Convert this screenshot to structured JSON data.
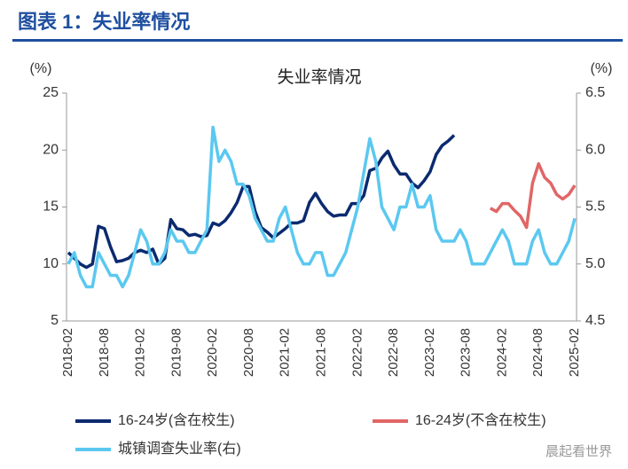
{
  "header": {
    "title": "图表 1：失业率情况"
  },
  "watermark": "晨起看世界",
  "chart_data": {
    "type": "line",
    "title": "失业率情况",
    "ylabel": "(%)",
    "y2label": "(%)",
    "categories": [
      "2018-02",
      null,
      null,
      null,
      null,
      null,
      "2018-08",
      null,
      null,
      null,
      null,
      null,
      "2019-02",
      null,
      null,
      null,
      null,
      null,
      "2019-08",
      null,
      null,
      null,
      null,
      null,
      "2020-02",
      null,
      null,
      null,
      null,
      null,
      "2020-08",
      null,
      null,
      null,
      null,
      null,
      "2021-02",
      null,
      null,
      null,
      null,
      null,
      "2021-08",
      null,
      null,
      null,
      null,
      null,
      "2022-02",
      null,
      null,
      null,
      null,
      null,
      "2022-08",
      null,
      null,
      null,
      null,
      null,
      "2023-02",
      null,
      null,
      null,
      null,
      null,
      "2023-08",
      null,
      null,
      null,
      null,
      null,
      "2024-02",
      null,
      null,
      null,
      null,
      null,
      "2024-08",
      null,
      null,
      null,
      null,
      null,
      "2025-02"
    ],
    "series": [
      {
        "name": "16-24岁(含在校生)",
        "color": "#0b2a6f",
        "values": [
          11.0,
          10.5,
          10.0,
          9.7,
          10.0,
          13.3,
          13.1,
          11.5,
          10.2,
          10.3,
          10.5,
          11.0,
          11.2,
          11.0,
          11.3,
          10.0,
          10.5,
          13.9,
          13.1,
          13.0,
          12.5,
          12.6,
          12.4,
          12.5,
          13.6,
          13.4,
          13.8,
          14.5,
          15.4,
          16.8,
          16.8,
          14.6,
          13.2,
          12.8,
          12.3,
          12.7,
          13.1,
          13.6,
          13.6,
          13.8,
          15.4,
          16.2,
          15.3,
          14.6,
          14.2,
          14.3,
          14.3,
          15.3,
          15.3,
          16.0,
          18.2,
          18.4,
          19.3,
          19.9,
          18.7,
          17.9,
          17.9,
          17.1,
          16.7,
          17.3,
          18.1,
          19.6,
          20.4,
          20.8,
          21.3,
          null,
          null,
          null,
          null,
          null,
          null,
          null,
          null,
          null,
          null,
          null,
          null,
          null,
          null,
          null,
          null,
          null,
          null,
          null,
          null
        ]
      },
      {
        "name": "16-24岁(不含在校生)",
        "color": "#e06666",
        "values": [
          null,
          null,
          null,
          null,
          null,
          null,
          null,
          null,
          null,
          null,
          null,
          null,
          null,
          null,
          null,
          null,
          null,
          null,
          null,
          null,
          null,
          null,
          null,
          null,
          null,
          null,
          null,
          null,
          null,
          null,
          null,
          null,
          null,
          null,
          null,
          null,
          null,
          null,
          null,
          null,
          null,
          null,
          null,
          null,
          null,
          null,
          null,
          null,
          null,
          null,
          null,
          null,
          null,
          null,
          null,
          null,
          null,
          null,
          null,
          null,
          null,
          null,
          null,
          null,
          null,
          null,
          null,
          null,
          null,
          null,
          14.9,
          14.6,
          15.3,
          15.3,
          14.7,
          14.2,
          13.2,
          17.1,
          18.8,
          17.6,
          17.1,
          16.1,
          15.7,
          16.1,
          16.9
        ]
      },
      {
        "name": "城镇调查失业率(右)",
        "color": "#5bc8f0",
        "axis": "y2",
        "values": [
          5.0,
          5.1,
          4.9,
          4.8,
          4.8,
          5.1,
          5.0,
          4.9,
          4.9,
          4.8,
          4.9,
          5.1,
          5.3,
          5.2,
          5.0,
          5.0,
          5.1,
          5.3,
          5.2,
          5.2,
          5.1,
          5.1,
          5.2,
          5.3,
          6.2,
          5.9,
          6.0,
          5.9,
          5.7,
          5.7,
          5.6,
          5.4,
          5.3,
          5.2,
          5.2,
          5.4,
          5.5,
          5.3,
          5.1,
          5.0,
          5.0,
          5.1,
          5.1,
          4.9,
          4.9,
          5.0,
          5.1,
          5.3,
          5.5,
          5.8,
          6.1,
          5.9,
          5.5,
          5.4,
          5.3,
          5.5,
          5.5,
          5.7,
          5.5,
          5.5,
          5.6,
          5.3,
          5.2,
          5.2,
          5.2,
          5.3,
          5.2,
          5.0,
          5.0,
          5.0,
          5.1,
          5.2,
          5.3,
          5.2,
          5.0,
          5.0,
          5.0,
          5.2,
          5.3,
          5.1,
          5.0,
          5.0,
          5.1,
          5.2,
          5.4
        ]
      }
    ],
    "ylim": [
      5,
      25
    ],
    "yticks": [
      5,
      10,
      15,
      20,
      25
    ],
    "y2lim": [
      4.5,
      6.5
    ],
    "y2ticks": [
      4.5,
      {
        "value": 5,
        "label": "5.0"
      },
      5.5,
      {
        "value": 6,
        "label": "6.0"
      },
      6.5
    ],
    "grid": false,
    "legend": "bottom"
  }
}
